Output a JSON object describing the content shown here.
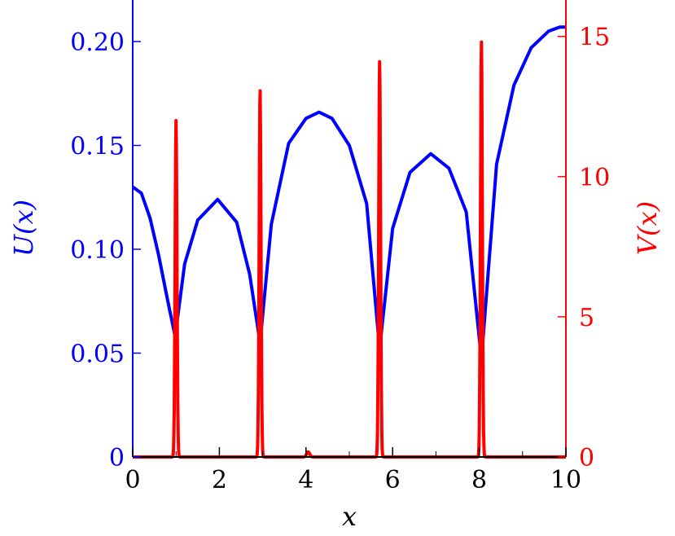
{
  "chart_data": {
    "type": "line",
    "title": "",
    "xlabel": "x",
    "ylabel_left": "U(x)",
    "ylabel_right": "V(x)",
    "xlim": [
      0,
      10
    ],
    "ylim_left": [
      0,
      0.22
    ],
    "ylim_right": [
      0,
      16.3
    ],
    "x_ticks": [
      0,
      2,
      4,
      6,
      8,
      10
    ],
    "x_tick_labels": [
      "0",
      "2",
      "4",
      "6",
      "8",
      "10"
    ],
    "y_left_ticks": [
      0,
      0.05,
      0.1,
      0.15,
      0.2
    ],
    "y_left_tick_labels": [
      "0",
      "0.05",
      "0.10",
      "0.15",
      "0.20"
    ],
    "y_right_ticks": [
      0,
      5,
      10,
      15
    ],
    "y_right_tick_labels": [
      "0",
      "5",
      "10",
      "15"
    ],
    "colors": {
      "U": "#0000ff",
      "V": "#ff0000",
      "axis": "#000000"
    },
    "series": [
      {
        "axis": "left",
        "x": [
          0,
          0.2,
          0.4,
          0.6,
          0.8,
          0.98,
          1.2,
          1.5,
          1.96,
          2.4,
          2.7,
          2.94,
          3.2,
          3.6,
          4.0,
          4.3,
          4.6,
          5.0,
          5.4,
          5.7,
          6.0,
          6.4,
          6.88,
          7.3,
          7.7,
          8.05,
          8.4,
          8.8,
          9.2,
          9.6,
          9.86,
          10
        ],
        "y": [
          0.13,
          0.127,
          0.115,
          0.097,
          0.076,
          0.058,
          0.093,
          0.114,
          0.124,
          0.113,
          0.088,
          0.055,
          0.112,
          0.151,
          0.163,
          0.166,
          0.163,
          0.15,
          0.122,
          0.052,
          0.11,
          0.137,
          0.146,
          0.139,
          0.118,
          0.047,
          0.141,
          0.179,
          0.197,
          0.205,
          0.207,
          0.207
        ]
      },
      {
        "axis": "right",
        "spikes": [
          {
            "x": 1.0,
            "height": 12.0,
            "width": 0.03
          },
          {
            "x": 2.94,
            "height": 13.1,
            "width": 0.03
          },
          {
            "x": 4.05,
            "height": 0.18,
            "width": 0.05
          },
          {
            "x": 5.7,
            "height": 14.1,
            "width": 0.03
          },
          {
            "x": 8.05,
            "height": 14.8,
            "width": 0.03
          }
        ]
      }
    ]
  }
}
